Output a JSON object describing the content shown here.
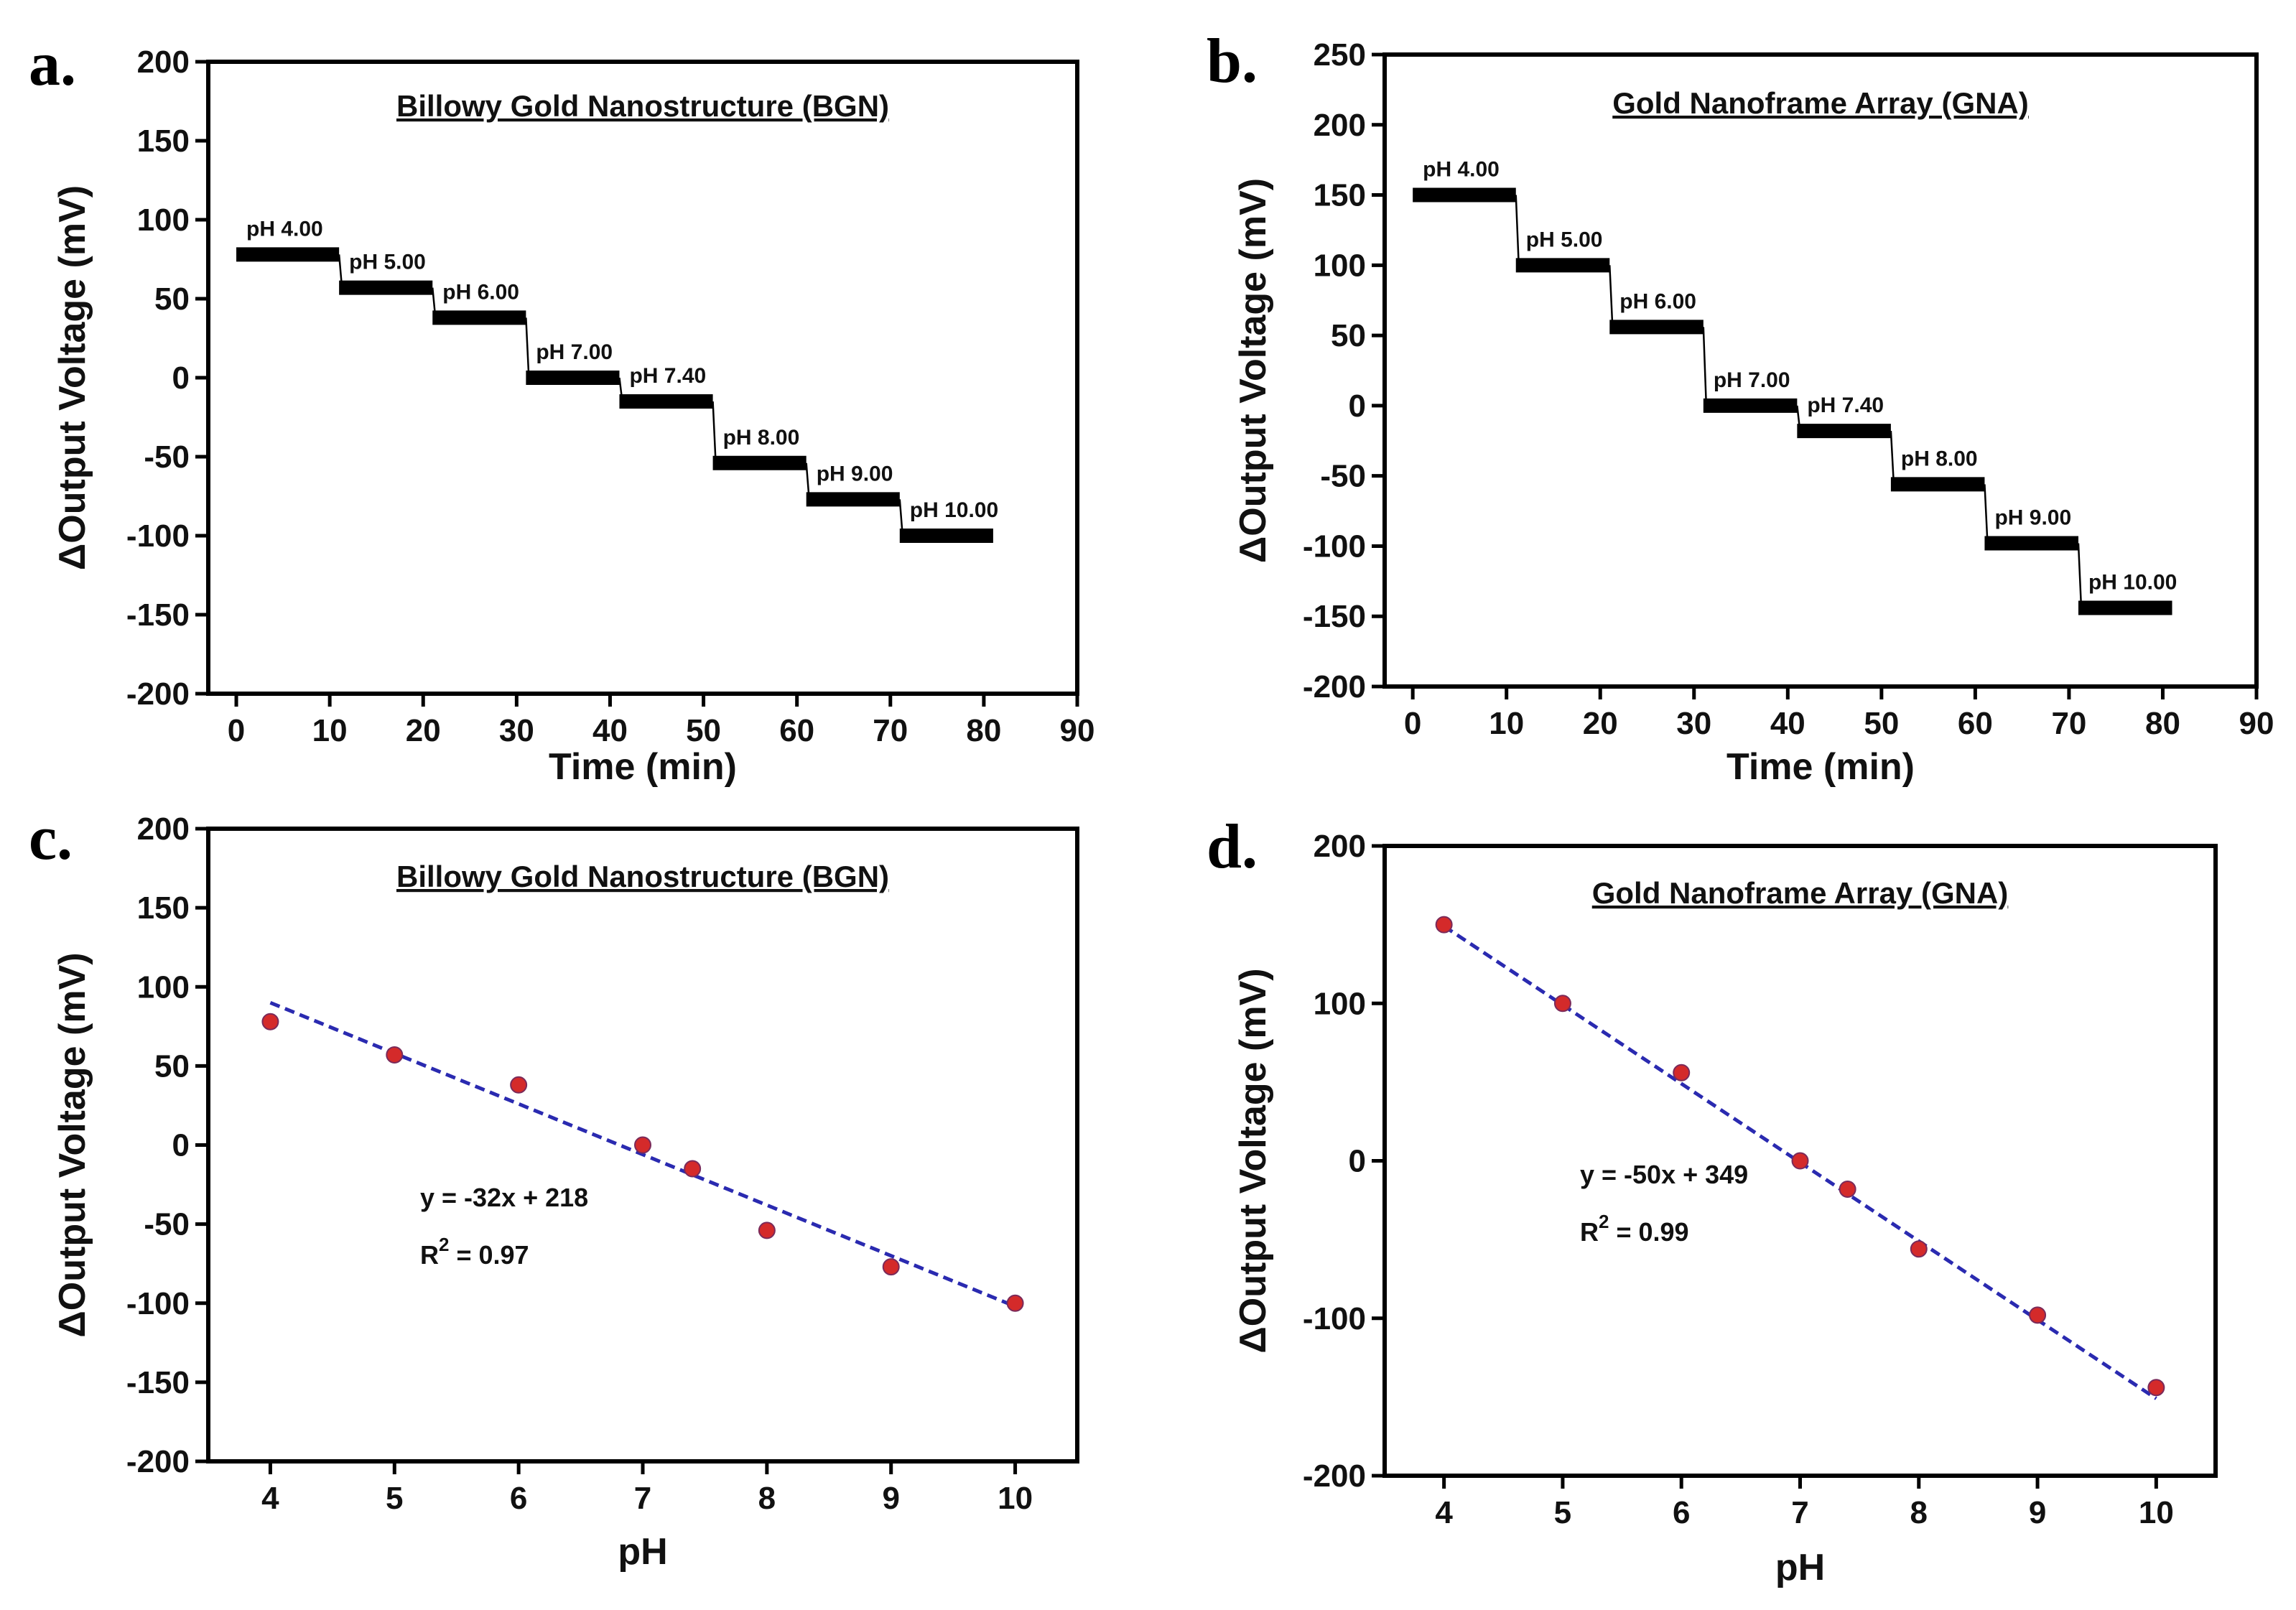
{
  "chart_data": [
    {
      "panel": "a.",
      "type": "line",
      "title": "Billowy Gold Nanostructure (BGN)",
      "xlabel": "Time (min)",
      "ylabel": "ΔOutput Voltage (mV)",
      "xlim": [
        -3,
        90
      ],
      "ylim": [
        -200,
        200
      ],
      "xticks": [
        0,
        10,
        20,
        30,
        40,
        50,
        60,
        70,
        80,
        90
      ],
      "yticks": [
        200,
        150,
        100,
        50,
        0,
        -50,
        -100,
        -150,
        -200
      ],
      "steps": [
        {
          "label": "pH 4.00",
          "t_start": 0,
          "t_end": 11,
          "value": 78
        },
        {
          "label": "pH 5.00",
          "t_start": 11,
          "t_end": 21,
          "value": 57
        },
        {
          "label": "pH 6.00",
          "t_start": 21,
          "t_end": 31,
          "value": 38
        },
        {
          "label": "pH 7.00",
          "t_start": 31,
          "t_end": 41,
          "value": 0
        },
        {
          "label": "pH 7.40",
          "t_start": 41,
          "t_end": 51,
          "value": -15
        },
        {
          "label": "pH 8.00",
          "t_start": 51,
          "t_end": 61,
          "value": -54
        },
        {
          "label": "pH 9.00",
          "t_start": 61,
          "t_end": 71,
          "value": -77
        },
        {
          "label": "pH 10.00",
          "t_start": 71,
          "t_end": 81,
          "value": -100
        }
      ]
    },
    {
      "panel": "b.",
      "type": "line",
      "title": "Gold Nanoframe Array (GNA)",
      "xlabel": "Time (min)",
      "ylabel": "ΔOutput Voltage (mV)",
      "xlim": [
        -3,
        90
      ],
      "ylim": [
        -200,
        250
      ],
      "xticks": [
        0,
        10,
        20,
        30,
        40,
        50,
        60,
        70,
        80,
        90
      ],
      "yticks": [
        250,
        200,
        150,
        100,
        50,
        0,
        -50,
        -100,
        -150,
        -200
      ],
      "steps": [
        {
          "label": "pH 4.00",
          "t_start": 0,
          "t_end": 11,
          "value": 150
        },
        {
          "label": "pH 5.00",
          "t_start": 11,
          "t_end": 21,
          "value": 100
        },
        {
          "label": "pH 6.00",
          "t_start": 21,
          "t_end": 31,
          "value": 56
        },
        {
          "label": "pH 7.00",
          "t_start": 31,
          "t_end": 41,
          "value": 0
        },
        {
          "label": "pH 7.40",
          "t_start": 41,
          "t_end": 51,
          "value": -18
        },
        {
          "label": "pH 8.00",
          "t_start": 51,
          "t_end": 61,
          "value": -56
        },
        {
          "label": "pH 9.00",
          "t_start": 61,
          "t_end": 71,
          "value": -98
        },
        {
          "label": "pH 10.00",
          "t_start": 71,
          "t_end": 81,
          "value": -144
        }
      ]
    },
    {
      "panel": "c.",
      "type": "scatter",
      "title": "Billowy Gold Nanostructure (BGN)",
      "xlabel": "pH",
      "ylabel": "ΔOutput Voltage (mV)",
      "xlim": [
        3.5,
        10.5
      ],
      "ylim": [
        -200,
        200
      ],
      "xticks": [
        4,
        5,
        6,
        7,
        8,
        9,
        10
      ],
      "yticks": [
        200,
        150,
        100,
        50,
        0,
        -50,
        -100,
        -150,
        -200
      ],
      "x": [
        4,
        5,
        6,
        7,
        7.4,
        8,
        9,
        10
      ],
      "y": [
        78,
        57,
        38,
        0,
        -15,
        -54,
        -77,
        -100
      ],
      "fit": {
        "slope": -32,
        "intercept": 218,
        "x_range": [
          4,
          10
        ]
      },
      "equation": "y   = -32x + 218",
      "r2_prefix": "R",
      "r2_sup": "2",
      "r2_value": " = 0.97"
    },
    {
      "panel": "d.",
      "type": "scatter",
      "title": "Gold Nanoframe Array (GNA)",
      "xlabel": "pH",
      "ylabel": "ΔOutput Voltage (mV)",
      "xlim": [
        3.5,
        10.5
      ],
      "ylim": [
        -200,
        200
      ],
      "xticks": [
        4,
        5,
        6,
        7,
        8,
        9,
        10
      ],
      "yticks": [
        200,
        100,
        0,
        -100,
        -200
      ],
      "x": [
        4,
        5,
        6,
        7,
        7.4,
        8,
        9,
        10
      ],
      "y": [
        150,
        100,
        56,
        0,
        -18,
        -56,
        -98,
        -144
      ],
      "fit": {
        "slope": -50,
        "intercept": 349,
        "x_range": [
          4,
          10
        ]
      },
      "equation": "y   = -50x + 349",
      "r2_prefix": "R",
      "r2_sup": "2",
      "r2_value": " = 0.99"
    }
  ],
  "colors": {
    "axis": "#000000",
    "step": "#000000",
    "point": "#d42a2a",
    "point_edge": "#7a2a5a",
    "fit": "#2a2ab0"
  }
}
